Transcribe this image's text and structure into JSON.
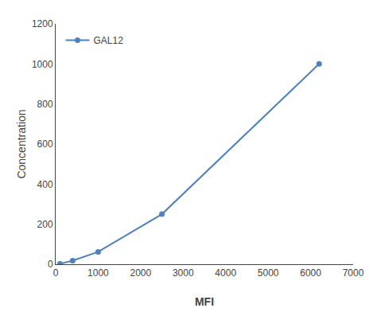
{
  "chart_data": {
    "type": "line",
    "xlabel": "MFI",
    "ylabel": "Concentration",
    "x": [
      100,
      400,
      1000,
      2500,
      6200
    ],
    "series": [
      {
        "name": "GAL12",
        "color": "#4f81bd",
        "marker": "circle",
        "line_style": "solid",
        "values": [
          2,
          18,
          62,
          250,
          1000
        ]
      }
    ],
    "xlim": [
      0,
      7000
    ],
    "ylim": [
      0,
      1200
    ],
    "xticks": [
      0,
      1000,
      2000,
      3000,
      4000,
      5000,
      6000,
      7000
    ],
    "yticks": [
      0,
      200,
      400,
      600,
      800,
      1000,
      1200
    ],
    "grid": false,
    "legend": "upper left"
  }
}
